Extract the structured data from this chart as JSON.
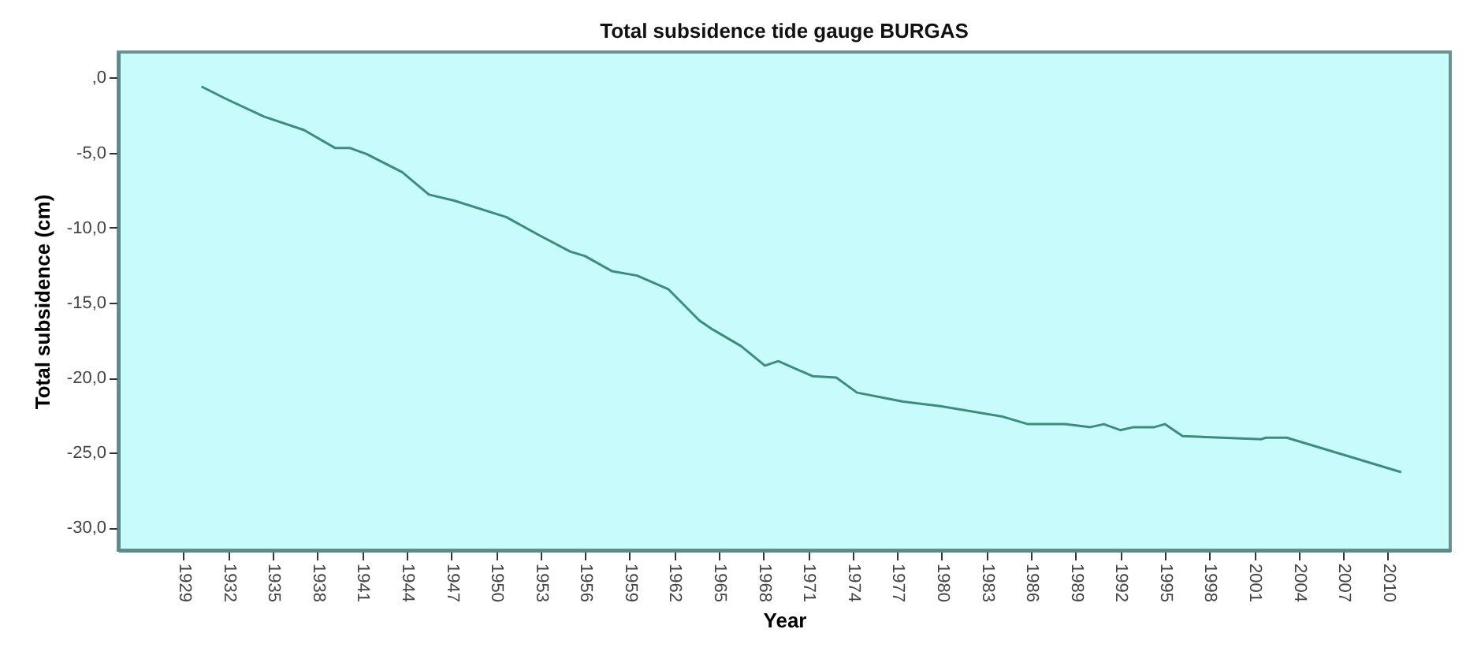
{
  "chart_data": {
    "type": "line",
    "title": "Total subsidence tide gauge BURGAS",
    "xlabel": "Year",
    "ylabel": "Total subsidence (cm)",
    "x": [
      1930.2,
      1931.8,
      1934.4,
      1937.1,
      1939.2,
      1940.2,
      1941.3,
      1943.7,
      1945.5,
      1947.2,
      1950.7,
      1952.9,
      1955,
      1956,
      1957.8,
      1959.5,
      1961.6,
      1963.7,
      1964.6,
      1966.5,
      1968.1,
      1969,
      1971.3,
      1972.9,
      1974.3,
      1977.4,
      1979.9,
      1984.1,
      1985.8,
      1988.3,
      1990,
      1990.9,
      1992,
      1992.9,
      1994.3,
      1995,
      1996.2,
      2001.5,
      2001.8,
      2003.2,
      2010.9
    ],
    "series": [
      {
        "color": "#3d8c7c",
        "values": [
          -0.6,
          -1.4,
          -2.6,
          -3.5,
          -4.7,
          -4.7,
          -5.1,
          -6.3,
          -7.8,
          -8.2,
          -9.3,
          -10.5,
          -11.6,
          -11.9,
          -12.9,
          -13.2,
          -14.1,
          -16.2,
          -16.8,
          -17.9,
          -19.2,
          -18.9,
          -19.9,
          -20.0,
          -21.0,
          -21.6,
          -21.9,
          -22.6,
          -23.1,
          -23.1,
          -23.3,
          -23.1,
          -23.5,
          -23.3,
          -23.3,
          -23.1,
          -23.9,
          -24.1,
          -24.0,
          -24.0,
          -26.3
        ]
      }
    ],
    "xlim": [
      1924.6,
      2014.2
    ],
    "xticks": [
      1929,
      1932,
      1935,
      1938,
      1941,
      1944,
      1947,
      1950,
      1953,
      1956,
      1959,
      1962,
      1965,
      1968,
      1971,
      1974,
      1977,
      1980,
      1983,
      1986,
      1989,
      1992,
      1995,
      1998,
      2001,
      2004,
      2007,
      2010
    ],
    "ylim": [
      -31.5,
      1.7
    ],
    "yticks": [
      {
        "value": 0,
        "label": ",0"
      },
      {
        "value": -5,
        "label": "-5,0"
      },
      {
        "value": -10,
        "label": "-10,0"
      },
      {
        "value": -15,
        "label": "-15,0"
      },
      {
        "value": -20,
        "label": "-20,0"
      },
      {
        "value": -25,
        "label": "-25,0"
      },
      {
        "value": -30,
        "label": "-30,0"
      }
    ],
    "grid": false,
    "marker": "none",
    "line_style": "solid"
  }
}
